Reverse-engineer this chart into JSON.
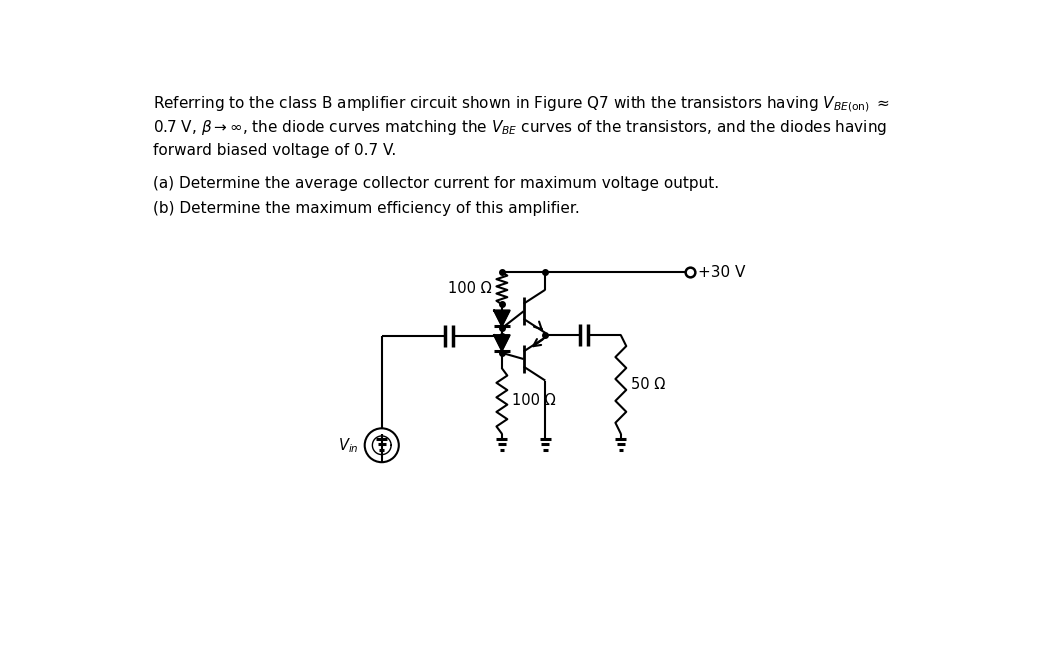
{
  "background_color": "#ffffff",
  "supply_voltage": "+30 V",
  "r1_label": "100 Ω",
  "r2_label": "100 Ω",
  "rl_label": "50 Ω",
  "vin_label": "$V_{in}$",
  "fig_width": 10.39,
  "fig_height": 6.69,
  "dpi": 100
}
